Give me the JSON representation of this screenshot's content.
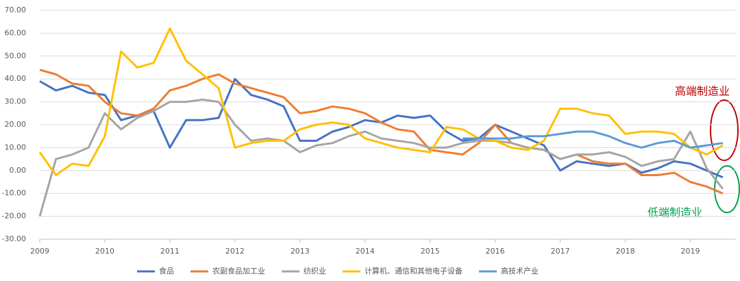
{
  "chart_data": {
    "type": "line",
    "x": [
      2009,
      2009.25,
      2009.5,
      2009.75,
      2010,
      2010.25,
      2010.5,
      2010.75,
      2011,
      2011.25,
      2011.5,
      2011.75,
      2012,
      2012.25,
      2012.5,
      2012.75,
      2013,
      2013.25,
      2013.5,
      2013.75,
      2014,
      2014.25,
      2014.5,
      2014.75,
      2015,
      2015.25,
      2015.5,
      2015.75,
      2016,
      2016.25,
      2016.5,
      2016.75,
      2017,
      2017.25,
      2017.5,
      2017.75,
      2018,
      2018.25,
      2018.5,
      2018.75,
      2019,
      2019.25,
      2019.5
    ],
    "series": [
      {
        "name": "食品",
        "color": "#4472c4",
        "values": [
          39,
          35,
          37,
          34,
          33,
          22,
          24,
          26,
          10,
          22,
          22,
          23,
          40,
          33,
          31,
          28,
          13,
          13,
          17,
          19,
          22,
          21,
          24,
          23,
          24,
          17,
          13,
          14,
          20,
          17,
          14,
          11,
          0,
          4,
          3,
          2,
          3,
          -1,
          1,
          4,
          3,
          0,
          -3
        ]
      },
      {
        "name": "农副食品加工业",
        "color": "#ed7d31",
        "values": [
          44,
          42,
          38,
          37,
          30,
          25,
          24,
          27,
          35,
          37,
          40,
          42,
          38,
          36,
          34,
          32,
          25,
          26,
          28,
          27,
          25,
          21,
          18,
          17,
          9,
          8,
          7,
          12,
          20,
          12,
          10,
          9,
          5,
          7,
          4,
          3,
          3,
          -2,
          -2,
          -1,
          -5,
          -7,
          -10
        ]
      },
      {
        "name": "纺织业",
        "color": "#a5a5a5",
        "values": [
          -20,
          5,
          7,
          10,
          25,
          18,
          23,
          26,
          30,
          30,
          31,
          30,
          20,
          13,
          14,
          13,
          8,
          11,
          12,
          15,
          17,
          14,
          13,
          12,
          10,
          10,
          12,
          13,
          13,
          12,
          10,
          9,
          5,
          7,
          7,
          8,
          6,
          2,
          4,
          5,
          17,
          1,
          -8
        ]
      },
      {
        "name": "计算机、通信和其他电子设备",
        "color": "#ffc000",
        "values": [
          8,
          -2,
          3,
          2,
          15,
          52,
          45,
          47,
          62,
          48,
          42,
          36,
          10,
          12,
          13,
          13,
          18,
          20,
          21,
          20,
          14,
          12,
          10,
          9,
          8,
          19,
          18,
          14,
          13,
          10,
          9,
          13,
          27,
          27,
          25,
          24,
          16,
          17,
          17,
          16,
          10,
          7,
          11
        ]
      },
      {
        "name": "高技术产业",
        "color": "#5b9bd5",
        "values": [
          null,
          null,
          null,
          null,
          null,
          null,
          null,
          null,
          null,
          null,
          null,
          null,
          null,
          null,
          null,
          null,
          null,
          null,
          null,
          null,
          null,
          null,
          null,
          null,
          null,
          null,
          14,
          14,
          14,
          14,
          15,
          15,
          16,
          17,
          17,
          15,
          12,
          10,
          12,
          13,
          10,
          11,
          12
        ]
      }
    ],
    "xlim": [
      2009,
      2019.7
    ],
    "xticks": [
      2009,
      2010,
      2011,
      2012,
      2013,
      2014,
      2015,
      2016,
      2017,
      2018,
      2019
    ],
    "ylim": [
      -30,
      70
    ],
    "yticks": [
      {
        "value": -30,
        "label": "-30.00"
      },
      {
        "value": -20,
        "label": "-20.00"
      },
      {
        "value": -10,
        "label": "-10.00"
      },
      {
        "value": 0,
        "label": "0.00"
      },
      {
        "value": 10,
        "label": "10.00"
      },
      {
        "value": 20,
        "label": "20.00"
      },
      {
        "value": 30,
        "label": "30.00"
      },
      {
        "value": 40,
        "label": "40.00"
      },
      {
        "value": 50,
        "label": "50.00"
      },
      {
        "value": 60,
        "label": "60.00"
      },
      {
        "value": 70,
        "label": "70.00"
      }
    ],
    "grid": true,
    "annotations": [
      {
        "text": "高端制造业",
        "color": "#c00000"
      },
      {
        "text": "低端制造业",
        "color": "#00a050"
      }
    ]
  }
}
